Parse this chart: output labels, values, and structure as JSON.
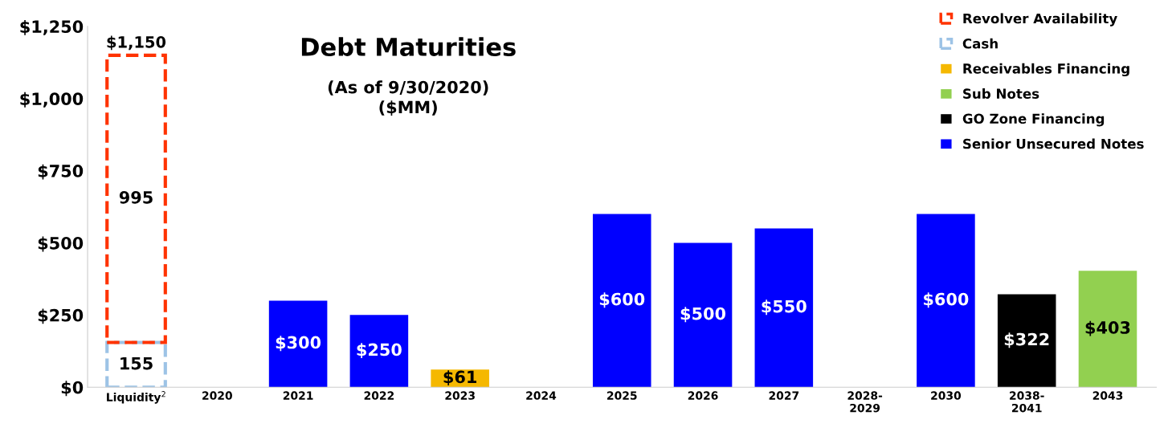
{
  "chart_data": {
    "type": "bar",
    "title": "Debt Maturities",
    "subtitle": "(As of 9/30/2020)\n($MM)",
    "categories": [
      "Liquidity$^{2}$",
      "2020",
      "2021",
      "2022",
      "2023",
      "2024",
      "2025",
      "2026",
      "2027",
      "2028-\n2029",
      "2030",
      "2038-\n2041",
      "2043"
    ],
    "stacked": true,
    "series": [
      {
        "name": "Senior Unsecured Notes",
        "color": "#0000ff",
        "values": [
          null,
          null,
          300,
          250,
          null,
          null,
          600,
          500,
          550,
          null,
          600,
          null,
          null
        ],
        "value_labels": [
          null,
          null,
          "$300",
          "$250",
          null,
          null,
          "$600",
          "$500",
          "$550",
          null,
          "$600",
          null,
          null
        ]
      },
      {
        "name": "GO Zone Financing",
        "color": "#000000",
        "values": [
          null,
          null,
          null,
          null,
          null,
          null,
          null,
          null,
          null,
          null,
          null,
          322,
          null
        ],
        "value_labels": [
          null,
          null,
          null,
          null,
          null,
          null,
          null,
          null,
          null,
          null,
          null,
          "$322",
          null
        ]
      },
      {
        "name": "Sub Notes",
        "color": "#92d050",
        "values": [
          null,
          null,
          null,
          null,
          null,
          null,
          null,
          null,
          null,
          null,
          null,
          null,
          403
        ],
        "value_labels": [
          null,
          null,
          null,
          null,
          null,
          null,
          null,
          null,
          null,
          null,
          null,
          null,
          "$403"
        ]
      },
      {
        "name": "Receivables Financing",
        "color": "#f5b800",
        "values": [
          null,
          null,
          null,
          null,
          61,
          null,
          null,
          null,
          null,
          null,
          null,
          null,
          null
        ],
        "value_labels": [
          null,
          null,
          null,
          null,
          "$61",
          null,
          null,
          null,
          null,
          null,
          null,
          null,
          null
        ]
      },
      {
        "name": "Cash",
        "color": "#9dc3e6",
        "line_style": "dashed",
        "values": [
          155,
          null,
          null,
          null,
          null,
          null,
          null,
          null,
          null,
          null,
          null,
          null,
          null
        ],
        "value_labels": [
          "155",
          null,
          null,
          null,
          null,
          null,
          null,
          null,
          null,
          null,
          null,
          null,
          null
        ]
      },
      {
        "name": "Revolver Availability",
        "color": "#ff3300",
        "line_style": "dashed",
        "values": [
          995,
          null,
          null,
          null,
          null,
          null,
          null,
          null,
          null,
          null,
          null,
          null,
          null
        ],
        "value_labels": [
          "995",
          null,
          null,
          null,
          null,
          null,
          null,
          null,
          null,
          null,
          null,
          null,
          null
        ]
      }
    ],
    "totals": [
      "$1,150",
      null,
      null,
      null,
      null,
      null,
      null,
      null,
      null,
      null,
      null,
      null,
      null
    ],
    "ylim": [
      0,
      1250
    ],
    "yticks": [
      {
        "value": 0,
        "label": "$0"
      },
      {
        "value": 250,
        "label": "$250"
      },
      {
        "value": 500,
        "label": "$500"
      },
      {
        "value": 750,
        "label": "$750"
      },
      {
        "value": 1000,
        "label": "$1,000"
      },
      {
        "value": 1250,
        "label": "$1,250"
      }
    ],
    "grid": false,
    "legend": "top right"
  }
}
